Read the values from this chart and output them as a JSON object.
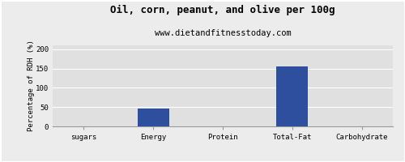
{
  "title": "Oil, corn, peanut, and olive per 100g",
  "subtitle": "www.dietandfitnesstoday.com",
  "categories": [
    "sugars",
    "Energy",
    "Protein",
    "Total-Fat",
    "Carbohydrate"
  ],
  "values": [
    0,
    46,
    0,
    155,
    0
  ],
  "bar_color": "#2e4f9e",
  "ylabel": "Percentage of RDH (%)",
  "ylim": [
    0,
    210
  ],
  "yticks": [
    0,
    50,
    100,
    150,
    200
  ],
  "background_color": "#ececec",
  "plot_bg_color": "#e0e0e0",
  "border_color": "#aaaaaa",
  "title_fontsize": 9,
  "subtitle_fontsize": 7.5,
  "ylabel_fontsize": 6.5,
  "tick_fontsize": 6.5,
  "grid_color": "#ffffff",
  "spine_color": "#999999"
}
